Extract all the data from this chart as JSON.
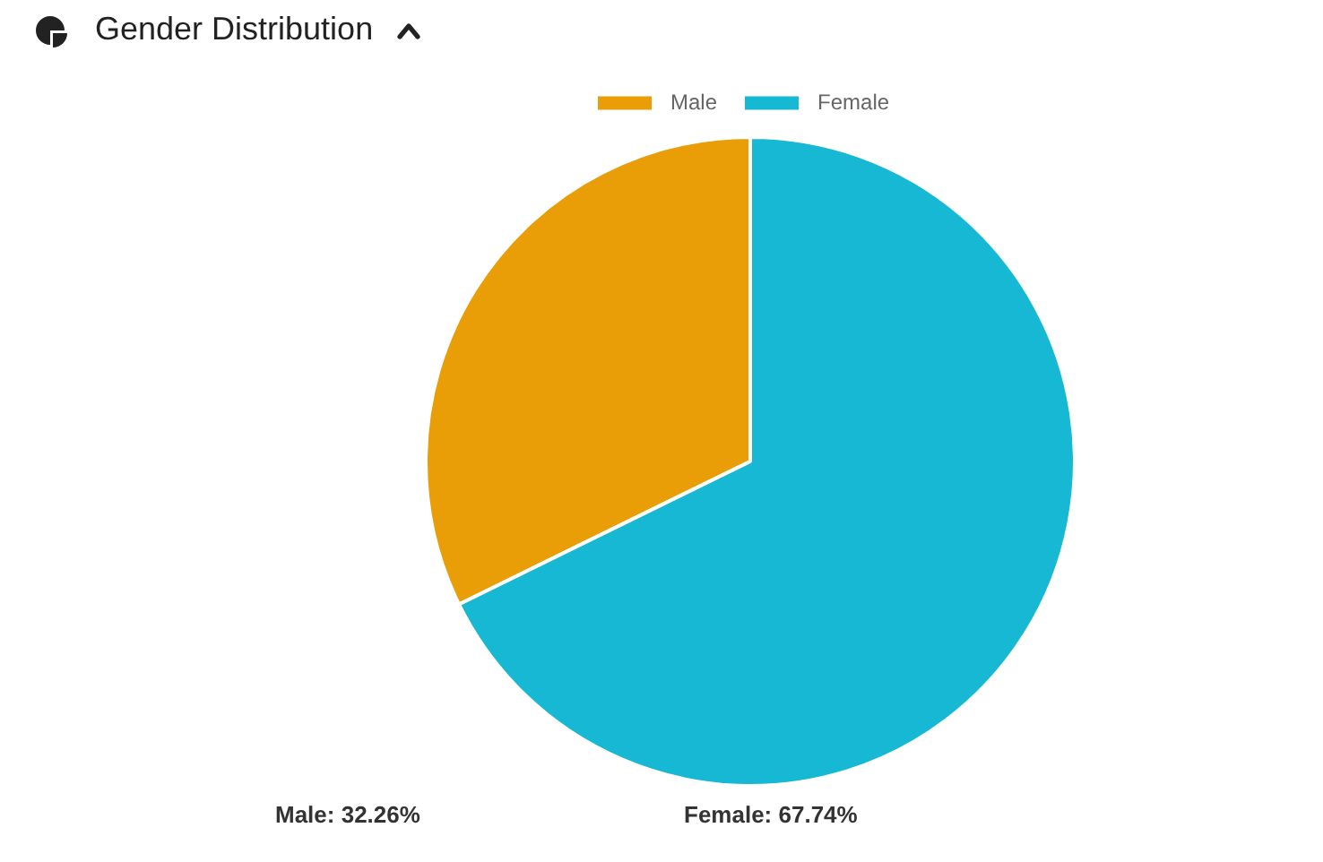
{
  "chart_data": {
    "type": "pie",
    "title": "Gender Distribution",
    "categories": [
      "Male",
      "Female"
    ],
    "values": [
      32.26,
      67.74
    ],
    "colors": [
      "#e99d06",
      "#17b8d4"
    ],
    "annotations": [
      "Male: 32.26%",
      "Female: 67.74%"
    ],
    "legend": "top"
  }
}
